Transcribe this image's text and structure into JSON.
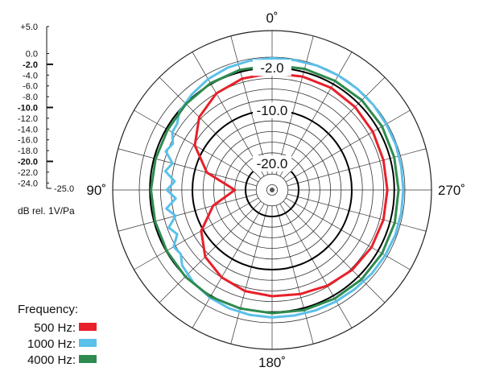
{
  "chart_data": {
    "type": "polar-line",
    "scale_label": "dB rel. 1V/Pa",
    "r_range": [
      -25,
      5
    ],
    "direction": "counter-clockwise",
    "rings": [
      {
        "value": 0,
        "label": "",
        "bold": false
      },
      {
        "value": -2,
        "label": "-2.0",
        "bold": true
      },
      {
        "value": -4,
        "label": "",
        "bold": false
      },
      {
        "value": -6,
        "label": "",
        "bold": false
      },
      {
        "value": -8,
        "label": "",
        "bold": false
      },
      {
        "value": -10,
        "label": "-10.0",
        "bold": true
      },
      {
        "value": -12,
        "label": "",
        "bold": false
      },
      {
        "value": -14,
        "label": "",
        "bold": false
      },
      {
        "value": -16,
        "label": "",
        "bold": false
      },
      {
        "value": -18,
        "label": "",
        "bold": false
      },
      {
        "value": -20,
        "label": "-20.0",
        "bold": true
      },
      {
        "value": -22,
        "label": "",
        "bold": false
      },
      {
        "value": -24,
        "label": "",
        "bold": false
      }
    ],
    "scale_ticks": [
      {
        "value": 5.0,
        "label": "+5.0",
        "bold": false
      },
      {
        "value": 0.0,
        "label": "0.0",
        "bold": false
      },
      {
        "value": -2.0,
        "label": "-2.0",
        "bold": true
      },
      {
        "value": -4.0,
        "label": "-4.0",
        "bold": false
      },
      {
        "value": -6.0,
        "label": "-6.0",
        "bold": false
      },
      {
        "value": -8.0,
        "label": "-8.0",
        "bold": false
      },
      {
        "value": -10.0,
        "label": "-10.0",
        "bold": true
      },
      {
        "value": -12.0,
        "label": "-12.0",
        "bold": false
      },
      {
        "value": -14.0,
        "label": "-14.0",
        "bold": false
      },
      {
        "value": -16.0,
        "label": "-16.0",
        "bold": false
      },
      {
        "value": -18.0,
        "label": "-18.0",
        "bold": false
      },
      {
        "value": -20.0,
        "label": "-20.0",
        "bold": true
      },
      {
        "value": -22.0,
        "label": "-22.0",
        "bold": false
      },
      {
        "value": -24.0,
        "label": "-24.0",
        "bold": false
      },
      {
        "value": -25.0,
        "label": "-25.0",
        "bold": false
      }
    ],
    "angle_labels": [
      {
        "angle": 0,
        "label": "0˚"
      },
      {
        "angle": 90,
        "label": "90˚"
      },
      {
        "angle": 180,
        "label": "180˚"
      },
      {
        "angle": 270,
        "label": "270˚"
      }
    ],
    "legend_title": "Frequency:",
    "series": [
      {
        "name": "500 Hz:",
        "color": "#e8202a",
        "points": [
          [
            0,
            -3.0
          ],
          [
            15,
            -3.3
          ],
          [
            30,
            -4.0
          ],
          [
            45,
            -5.6
          ],
          [
            60,
            -8.2
          ],
          [
            75,
            -12.3
          ],
          [
            90,
            -18.0
          ],
          [
            105,
            -13.5
          ],
          [
            120,
            -9.6
          ],
          [
            135,
            -7.2
          ],
          [
            150,
            -6.0
          ],
          [
            165,
            -5.3
          ],
          [
            180,
            -5.0
          ],
          [
            195,
            -4.7
          ],
          [
            210,
            -4.2
          ],
          [
            225,
            -3.7
          ],
          [
            240,
            -3.4
          ],
          [
            255,
            -3.3
          ],
          [
            270,
            -3.3
          ],
          [
            285,
            -3.3
          ],
          [
            300,
            -3.1
          ],
          [
            315,
            -2.9
          ],
          [
            330,
            -2.8
          ],
          [
            345,
            -2.9
          ]
        ]
      },
      {
        "name": "1000 Hz:",
        "color": "#5bc0ea",
        "points": [
          [
            0,
            -0.2
          ],
          [
            10,
            -0.3
          ],
          [
            20,
            -0.5
          ],
          [
            30,
            -0.9
          ],
          [
            40,
            -1.5
          ],
          [
            50,
            -2.2
          ],
          [
            55,
            -3.2
          ],
          [
            60,
            -3.3
          ],
          [
            65,
            -4.4
          ],
          [
            70,
            -3.7
          ],
          [
            75,
            -5.6
          ],
          [
            80,
            -4.6
          ],
          [
            85,
            -6.6
          ],
          [
            90,
            -5.2
          ],
          [
            95,
            -6.8
          ],
          [
            100,
            -4.8
          ],
          [
            105,
            -6.2
          ],
          [
            110,
            -4.3
          ],
          [
            115,
            -5.3
          ],
          [
            120,
            -3.6
          ],
          [
            125,
            -4.0
          ],
          [
            130,
            -2.9
          ],
          [
            140,
            -2.1
          ],
          [
            150,
            -1.6
          ],
          [
            160,
            -1.3
          ],
          [
            170,
            -1.1
          ],
          [
            180,
            -1.0
          ],
          [
            190,
            -1.0
          ],
          [
            200,
            -0.9
          ],
          [
            210,
            -0.8
          ],
          [
            220,
            -0.7
          ],
          [
            230,
            -0.5
          ],
          [
            240,
            -0.4
          ],
          [
            250,
            -0.3
          ],
          [
            260,
            -0.3
          ],
          [
            270,
            -0.3
          ],
          [
            280,
            -0.3
          ],
          [
            290,
            -0.2
          ],
          [
            300,
            -0.2
          ],
          [
            310,
            -0.1
          ],
          [
            320,
            -0.1
          ],
          [
            330,
            -0.1
          ],
          [
            340,
            -0.1
          ],
          [
            350,
            -0.2
          ]
        ]
      },
      {
        "name": "4000 Hz:",
        "color": "#2e8b4f",
        "points": [
          [
            0,
            -1.5
          ],
          [
            15,
            -1.6
          ],
          [
            30,
            -1.8
          ],
          [
            45,
            -2.1
          ],
          [
            60,
            -2.3
          ],
          [
            75,
            -2.3
          ],
          [
            90,
            -2.2
          ],
          [
            105,
            -2.2
          ],
          [
            120,
            -2.1
          ],
          [
            135,
            -1.9
          ],
          [
            150,
            -1.8
          ],
          [
            165,
            -1.9
          ],
          [
            180,
            -1.8
          ],
          [
            195,
            -1.6
          ],
          [
            210,
            -1.4
          ],
          [
            225,
            -1.2
          ],
          [
            240,
            -1.1
          ],
          [
            255,
            -1.1
          ],
          [
            270,
            -1.2
          ],
          [
            285,
            -1.2
          ],
          [
            300,
            -1.1
          ],
          [
            315,
            -1.1
          ],
          [
            330,
            -1.3
          ],
          [
            345,
            -1.4
          ]
        ]
      }
    ]
  }
}
